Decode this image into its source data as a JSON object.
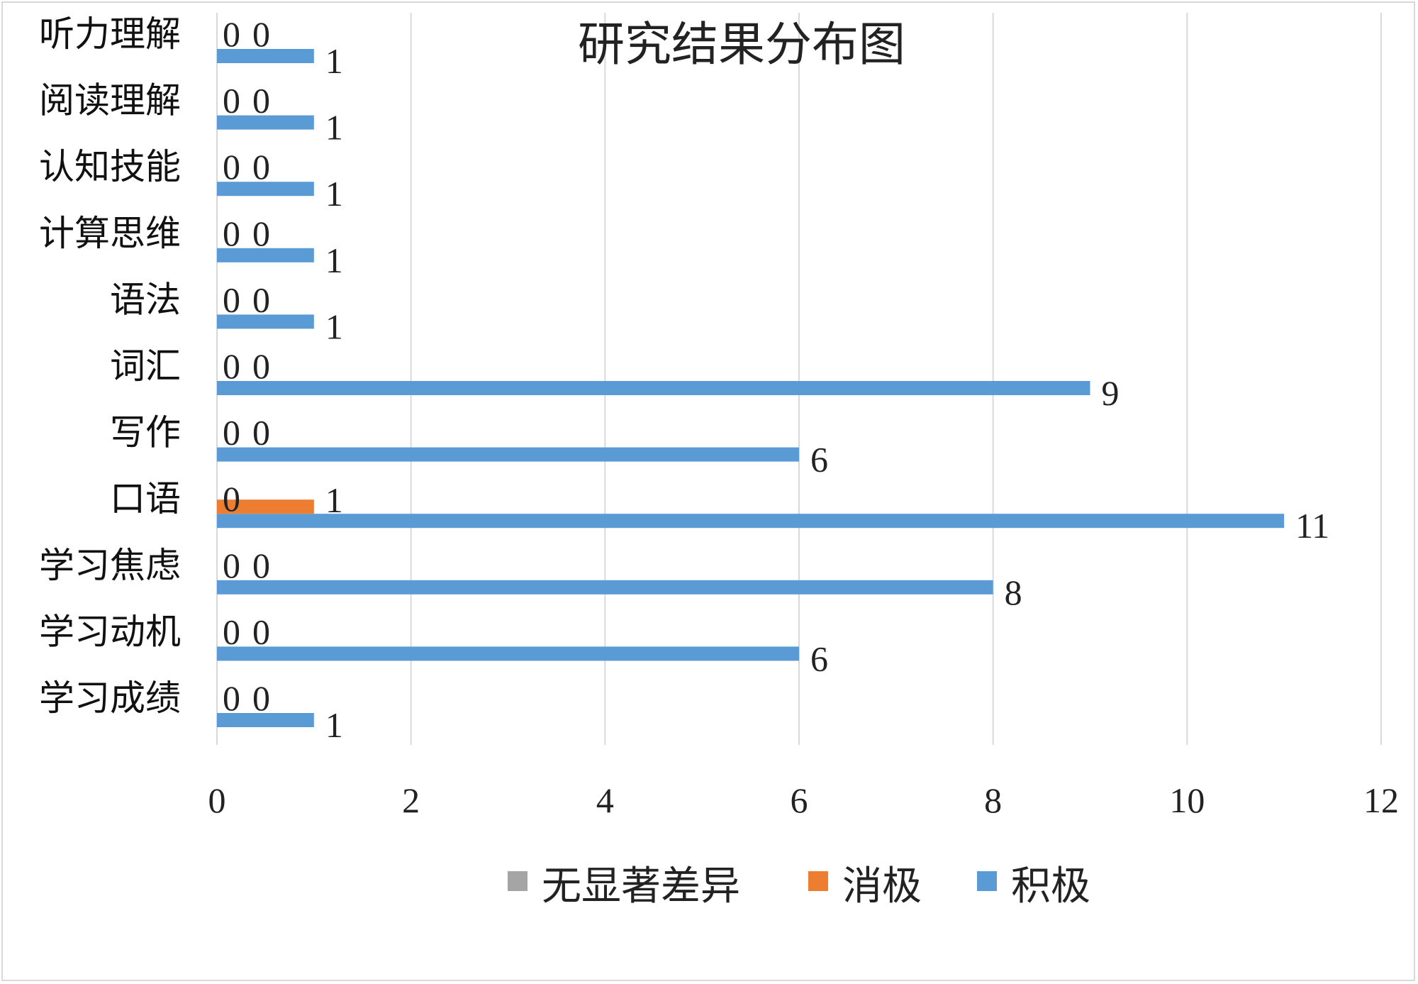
{
  "chart_data": {
    "type": "bar",
    "orientation": "horizontal",
    "title": "研究结果分布图",
    "categories": [
      "学习成绩",
      "学习动机",
      "学习焦虑",
      "口语",
      "写作",
      "词汇",
      "语法",
      "计算思维",
      "认知技能",
      "阅读理解",
      "听力理解"
    ],
    "series": [
      {
        "name": "无显著差异",
        "color": "#a5a5a5",
        "values": [
          0,
          0,
          0,
          0,
          0,
          0,
          0,
          0,
          0,
          0,
          0
        ]
      },
      {
        "name": "消极",
        "color": "#ed7d31",
        "values": [
          0,
          0,
          0,
          1,
          0,
          0,
          0,
          0,
          0,
          0,
          0
        ]
      },
      {
        "name": "积极",
        "color": "#5b9bd5",
        "values": [
          1,
          6,
          8,
          11,
          6,
          9,
          1,
          1,
          1,
          1,
          1
        ]
      }
    ],
    "xlim": [
      0,
      12
    ],
    "xticks": [
      "0",
      "2",
      "4",
      "6",
      "8",
      "10",
      "12"
    ],
    "grid": true,
    "legend_position": "bottom",
    "xlabel": "",
    "ylabel": ""
  }
}
